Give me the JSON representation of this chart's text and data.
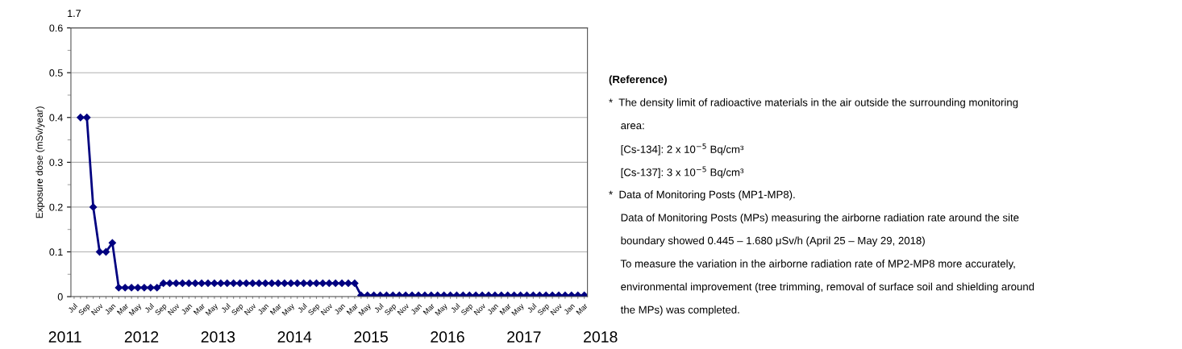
{
  "chart_data": {
    "type": "line",
    "ylabel": "Exposure dose (mSv/year)",
    "categories": [
      "Jul",
      null,
      "Sep",
      null,
      "Nov",
      null,
      "Jan",
      null,
      "Mar",
      null,
      "May",
      null,
      "Jul",
      null,
      "Sep",
      null,
      "Nov",
      null,
      "Jan",
      null,
      "Mar",
      null,
      "May",
      null,
      "Jul",
      null,
      "Sep",
      null,
      "Nov",
      null,
      "Jan",
      null,
      "Mar",
      null,
      "May",
      null,
      "Jul",
      null,
      "Sep",
      null,
      "Nov",
      null,
      "Jan",
      null,
      "Mar",
      null,
      "May",
      null,
      "Jul",
      null,
      "Sep",
      null,
      "Nov",
      null,
      "Jan",
      null,
      "Mar",
      null,
      "May",
      null,
      "Jul",
      null,
      "Sep",
      null,
      "Nov",
      null,
      "Jan",
      null,
      "Mar",
      null,
      "May",
      null,
      "Jul",
      null,
      "Sep",
      null,
      "Nov",
      null,
      "Jan",
      null,
      "Mar"
    ],
    "series": [
      {
        "color": "#000080",
        "values": [
          null,
          0.4,
          0.4,
          0.2,
          0.1,
          0.1,
          0.12,
          0.02,
          0.02,
          0.02,
          0.02,
          0.02,
          0.02,
          0.02,
          0.03,
          0.03,
          0.03,
          0.03,
          0.03,
          0.03,
          0.03,
          0.03,
          0.03,
          0.03,
          0.03,
          0.03,
          0.03,
          0.03,
          0.03,
          0.03,
          0.03,
          0.03,
          0.03,
          0.03,
          0.03,
          0.03,
          0.03,
          0.03,
          0.03,
          0.03,
          0.03,
          0.03,
          0.03,
          0.03,
          0.03,
          0.003,
          0.003,
          0.003,
          0.003,
          0.003,
          0.003,
          0.003,
          0.003,
          0.003,
          0.003,
          0.003,
          0.003,
          0.003,
          0.003,
          0.003,
          0.003,
          0.003,
          0.003,
          0.003,
          0.003,
          0.003,
          0.003,
          0.003,
          0.003,
          0.003,
          0.003,
          0.003,
          0.003,
          0.003,
          0.003,
          0.003,
          0.003,
          0.003,
          0.003,
          0.003,
          0.003
        ],
        "name": null
      }
    ],
    "ylim": [
      0,
      0.6
    ],
    "yticks": [
      0,
      0.1,
      0.2,
      0.3,
      0.4,
      0.5,
      0.6
    ],
    "grid": "y",
    "marker": "diamond",
    "line_style": "solid",
    "annotations": [
      "1.7",
      "2011",
      "2012",
      "2013",
      "2014",
      "2015",
      "2016",
      "2017",
      "2018",
      "(Reference)",
      "*  The density limit of radioactive materials in the air outside the surrounding monitoring",
      "    area:",
      "    [Cs-134]: 2 x 10$^{−5}$ Bq/cm³",
      "    [Cs-137]: 3 x 10$^{−5}$ Bq/cm³",
      "*  Data of Monitoring Posts (MP1-MP8).",
      "    Data of Monitoring Posts (MPs) measuring the airborne radiation rate around the site",
      "    boundary showed 0.445 – 1.680 μSv/h (April 25 – May 29, 2018)",
      "    To measure the variation in the airborne radiation rate of MP2-MP8 more accurately,",
      "    environmental improvement (tree trimming, removal of surface soil and shielding around",
      "    the MPs) was completed."
    ]
  }
}
